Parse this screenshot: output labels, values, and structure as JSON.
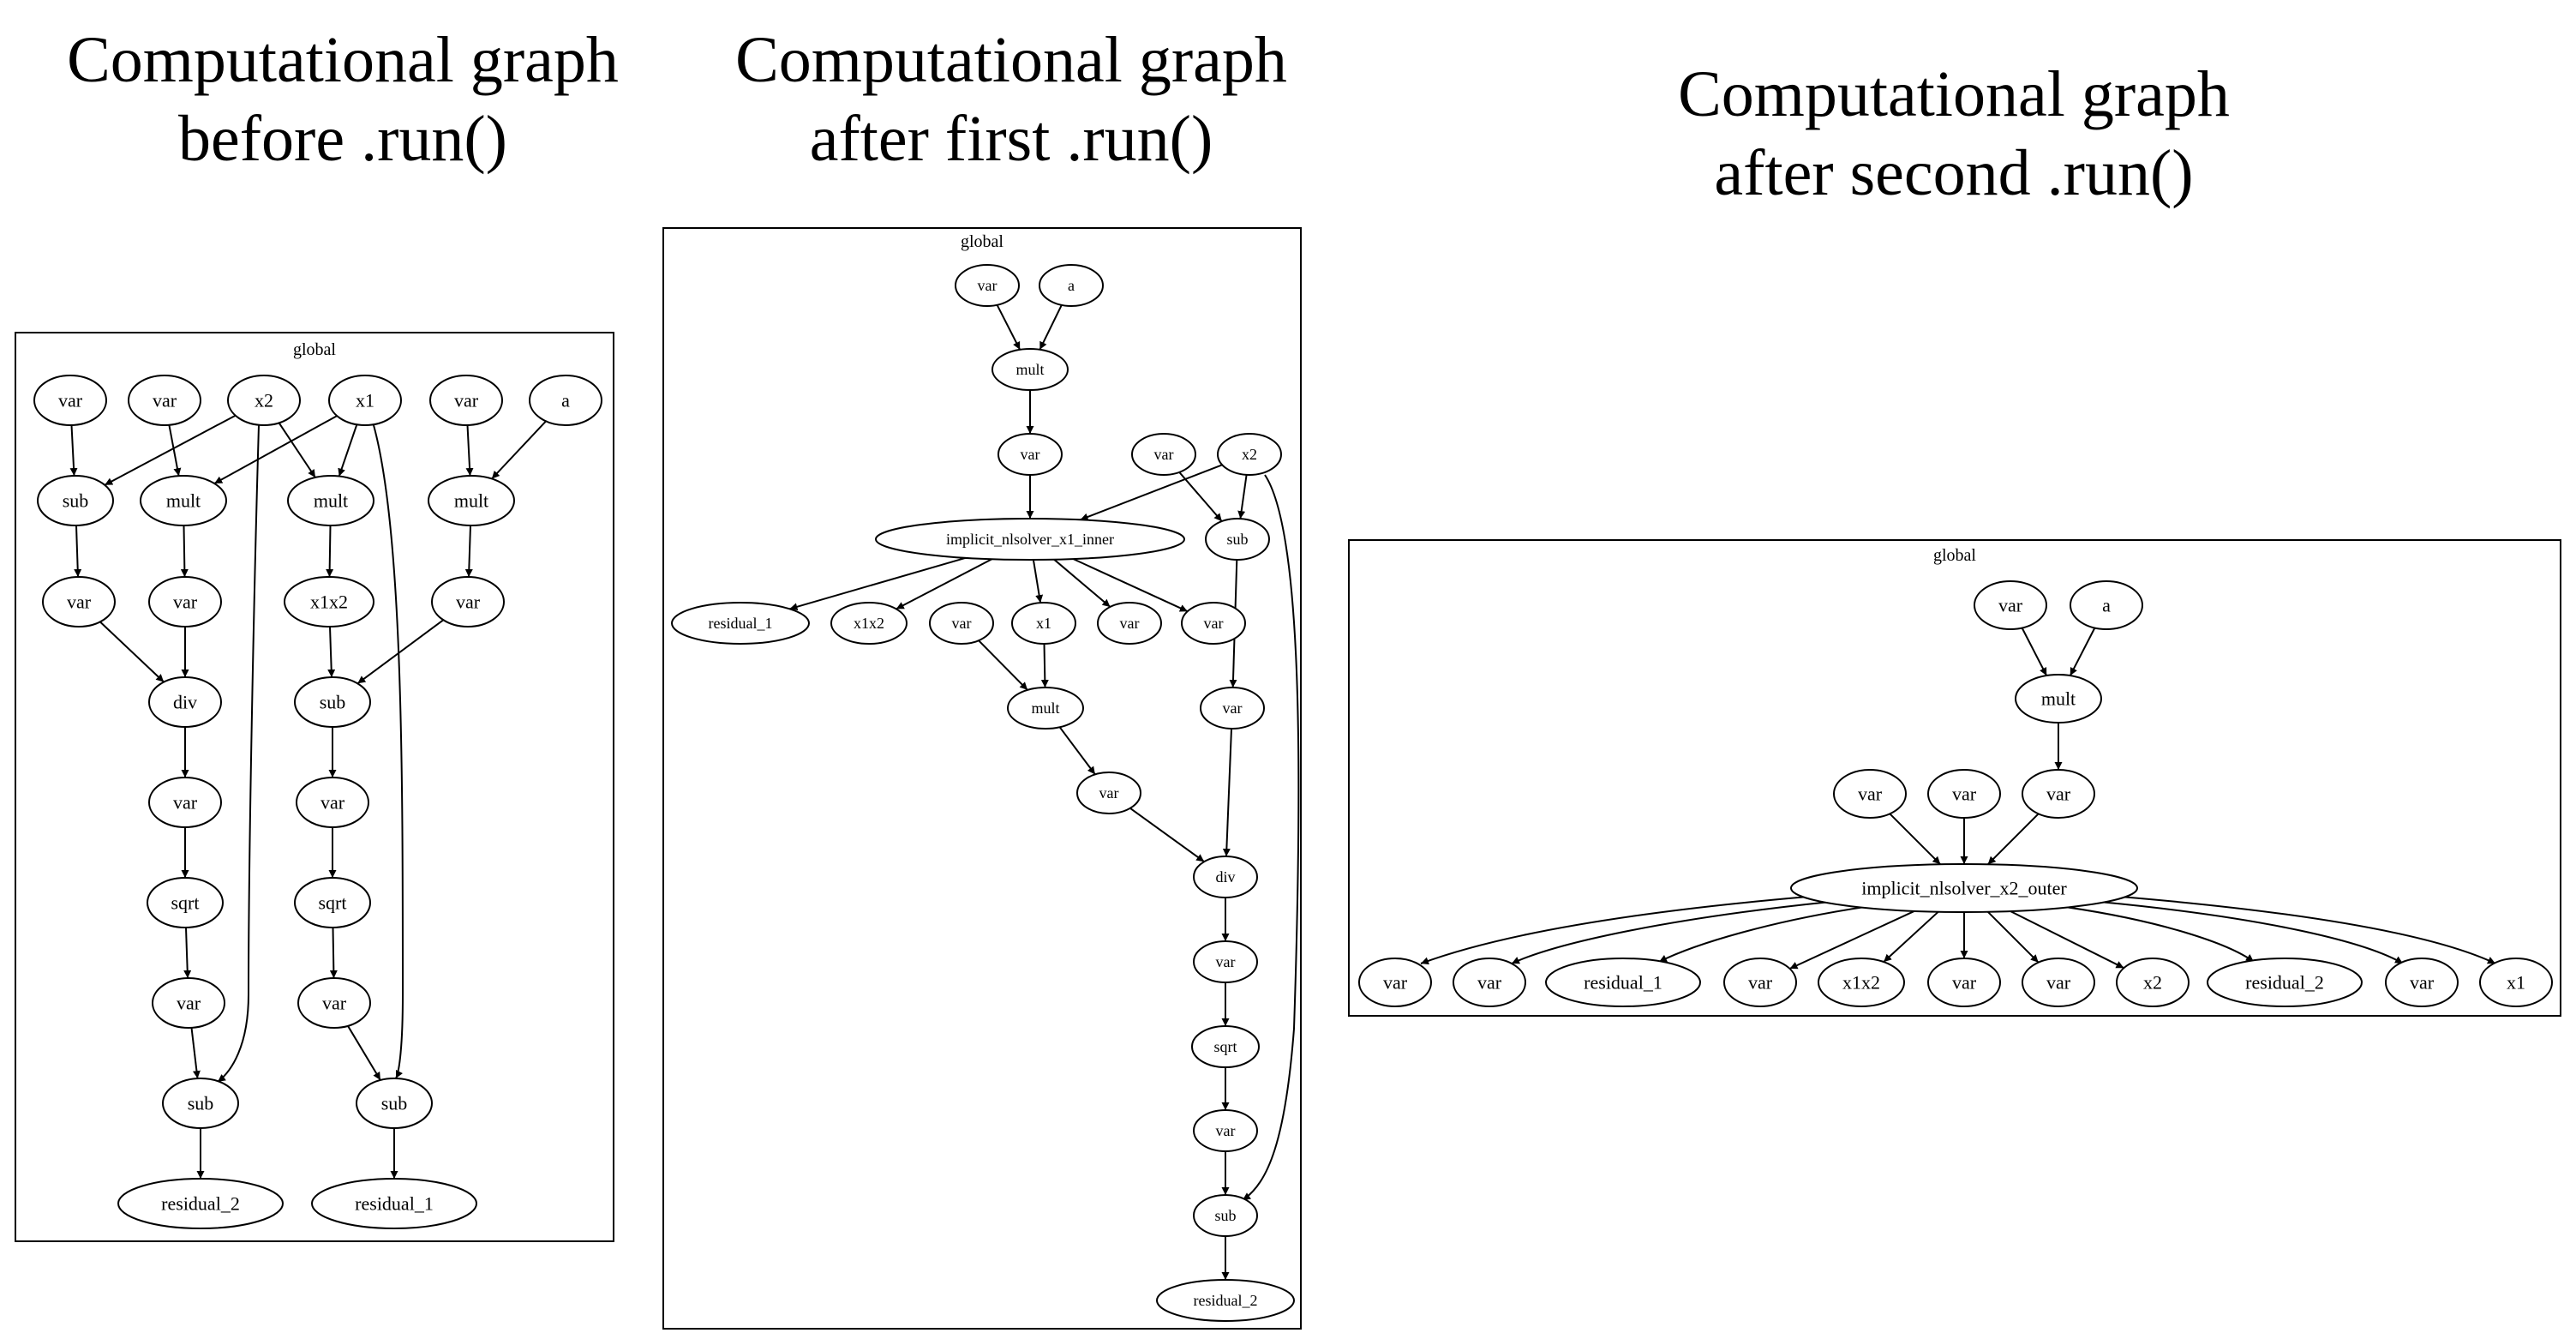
{
  "titles": {
    "before": [
      "Computational graph",
      "before .run()"
    ],
    "first": [
      "Computational graph",
      "after first .run()"
    ],
    "second": [
      "Computational graph",
      "after second .run()"
    ]
  },
  "frame_label": "global",
  "graphs": {
    "before": {
      "nodes": [
        {
          "id": "v1",
          "label": "var"
        },
        {
          "id": "v2",
          "label": "var"
        },
        {
          "id": "x2",
          "label": "x2"
        },
        {
          "id": "x1",
          "label": "x1"
        },
        {
          "id": "v3",
          "label": "var"
        },
        {
          "id": "a",
          "label": "a"
        },
        {
          "id": "sub1",
          "label": "sub"
        },
        {
          "id": "mult1",
          "label": "mult"
        },
        {
          "id": "mult2",
          "label": "mult"
        },
        {
          "id": "mult3",
          "label": "mult"
        },
        {
          "id": "v4",
          "label": "var"
        },
        {
          "id": "v5",
          "label": "var"
        },
        {
          "id": "x1x2",
          "label": "x1x2"
        },
        {
          "id": "v6",
          "label": "var"
        },
        {
          "id": "div",
          "label": "div"
        },
        {
          "id": "sub2",
          "label": "sub"
        },
        {
          "id": "v7",
          "label": "var"
        },
        {
          "id": "v8",
          "label": "var"
        },
        {
          "id": "sqrt1",
          "label": "sqrt"
        },
        {
          "id": "sqrt2",
          "label": "sqrt"
        },
        {
          "id": "v9",
          "label": "var"
        },
        {
          "id": "v10",
          "label": "var"
        },
        {
          "id": "sub3",
          "label": "sub"
        },
        {
          "id": "sub4",
          "label": "sub"
        },
        {
          "id": "r2",
          "label": "residual_2"
        },
        {
          "id": "r1",
          "label": "residual_1"
        }
      ],
      "edges": [
        [
          "v1",
          "sub1"
        ],
        [
          "x2",
          "sub1"
        ],
        [
          "v2",
          "mult1"
        ],
        [
          "x1",
          "mult1"
        ],
        [
          "x2",
          "mult2"
        ],
        [
          "x1",
          "mult2"
        ],
        [
          "v3",
          "mult3"
        ],
        [
          "a",
          "mult3"
        ],
        [
          "sub1",
          "v4"
        ],
        [
          "mult1",
          "v5"
        ],
        [
          "mult2",
          "x1x2"
        ],
        [
          "mult3",
          "v6"
        ],
        [
          "v4",
          "div"
        ],
        [
          "v5",
          "div"
        ],
        [
          "x1x2",
          "sub2"
        ],
        [
          "v6",
          "sub2"
        ],
        [
          "div",
          "v7"
        ],
        [
          "sub2",
          "v8"
        ],
        [
          "v7",
          "sqrt1"
        ],
        [
          "v8",
          "sqrt2"
        ],
        [
          "sqrt1",
          "v9"
        ],
        [
          "sqrt2",
          "v10"
        ],
        [
          "v9",
          "sub3"
        ],
        [
          "x2",
          "sub3"
        ],
        [
          "v10",
          "sub4"
        ],
        [
          "x1",
          "sub4"
        ],
        [
          "sub3",
          "r2"
        ],
        [
          "sub4",
          "r1"
        ]
      ]
    },
    "first": {
      "nodes": [
        {
          "id": "v1",
          "label": "var"
        },
        {
          "id": "a",
          "label": "a"
        },
        {
          "id": "mult1",
          "label": "mult"
        },
        {
          "id": "v2",
          "label": "var"
        },
        {
          "id": "v3",
          "label": "var"
        },
        {
          "id": "x2",
          "label": "x2"
        },
        {
          "id": "inner",
          "label": "implicit_nlsolver_x1_inner"
        },
        {
          "id": "sub1",
          "label": "sub"
        },
        {
          "id": "r1",
          "label": "residual_1"
        },
        {
          "id": "x1x2",
          "label": "x1x2"
        },
        {
          "id": "v4",
          "label": "var"
        },
        {
          "id": "x1",
          "label": "x1"
        },
        {
          "id": "v5",
          "label": "var"
        },
        {
          "id": "v6",
          "label": "var"
        },
        {
          "id": "mult2",
          "label": "mult"
        },
        {
          "id": "v7",
          "label": "var"
        },
        {
          "id": "v8",
          "label": "var"
        },
        {
          "id": "div",
          "label": "div"
        },
        {
          "id": "v9",
          "label": "var"
        },
        {
          "id": "sqrt",
          "label": "sqrt"
        },
        {
          "id": "v10",
          "label": "var"
        },
        {
          "id": "sub2",
          "label": "sub"
        },
        {
          "id": "r2",
          "label": "residual_2"
        }
      ],
      "edges": [
        [
          "v1",
          "mult1"
        ],
        [
          "a",
          "mult1"
        ],
        [
          "mult1",
          "v2"
        ],
        [
          "v2",
          "inner"
        ],
        [
          "x2",
          "inner"
        ],
        [
          "v3",
          "sub1"
        ],
        [
          "x2",
          "sub1"
        ],
        [
          "inner",
          "r1"
        ],
        [
          "inner",
          "x1x2"
        ],
        [
          "inner",
          "x1"
        ],
        [
          "inner",
          "v5"
        ],
        [
          "inner",
          "v6"
        ],
        [
          "v4",
          "mult2"
        ],
        [
          "x1",
          "mult2"
        ],
        [
          "sub1",
          "v7"
        ],
        [
          "mult2",
          "v8"
        ],
        [
          "v8",
          "div"
        ],
        [
          "v7",
          "div"
        ],
        [
          "div",
          "v9"
        ],
        [
          "v9",
          "sqrt"
        ],
        [
          "sqrt",
          "v10"
        ],
        [
          "v10",
          "sub2"
        ],
        [
          "x2",
          "sub2"
        ],
        [
          "sub2",
          "r2"
        ]
      ]
    },
    "second": {
      "nodes": [
        {
          "id": "v1",
          "label": "var"
        },
        {
          "id": "a",
          "label": "a"
        },
        {
          "id": "mult",
          "label": "mult"
        },
        {
          "id": "v2",
          "label": "var"
        },
        {
          "id": "v3",
          "label": "var"
        },
        {
          "id": "v4",
          "label": "var"
        },
        {
          "id": "outer",
          "label": "implicit_nlsolver_x2_outer"
        },
        {
          "id": "o1",
          "label": "var"
        },
        {
          "id": "o2",
          "label": "var"
        },
        {
          "id": "o3",
          "label": "residual_1"
        },
        {
          "id": "o4",
          "label": "var"
        },
        {
          "id": "o5",
          "label": "x1x2"
        },
        {
          "id": "o6",
          "label": "var"
        },
        {
          "id": "o7",
          "label": "var"
        },
        {
          "id": "o8",
          "label": "x2"
        },
        {
          "id": "o9",
          "label": "residual_2"
        },
        {
          "id": "o10",
          "label": "var"
        },
        {
          "id": "o11",
          "label": "x1"
        }
      ],
      "edges": [
        [
          "v1",
          "mult"
        ],
        [
          "a",
          "mult"
        ],
        [
          "mult",
          "v4"
        ],
        [
          "v2",
          "outer"
        ],
        [
          "v3",
          "outer"
        ],
        [
          "v4",
          "outer"
        ],
        [
          "outer",
          "o1"
        ],
        [
          "outer",
          "o2"
        ],
        [
          "outer",
          "o3"
        ],
        [
          "outer",
          "o4"
        ],
        [
          "outer",
          "o5"
        ],
        [
          "outer",
          "o6"
        ],
        [
          "outer",
          "o7"
        ],
        [
          "outer",
          "o8"
        ],
        [
          "outer",
          "o9"
        ],
        [
          "outer",
          "o10"
        ],
        [
          "outer",
          "o11"
        ]
      ]
    }
  }
}
